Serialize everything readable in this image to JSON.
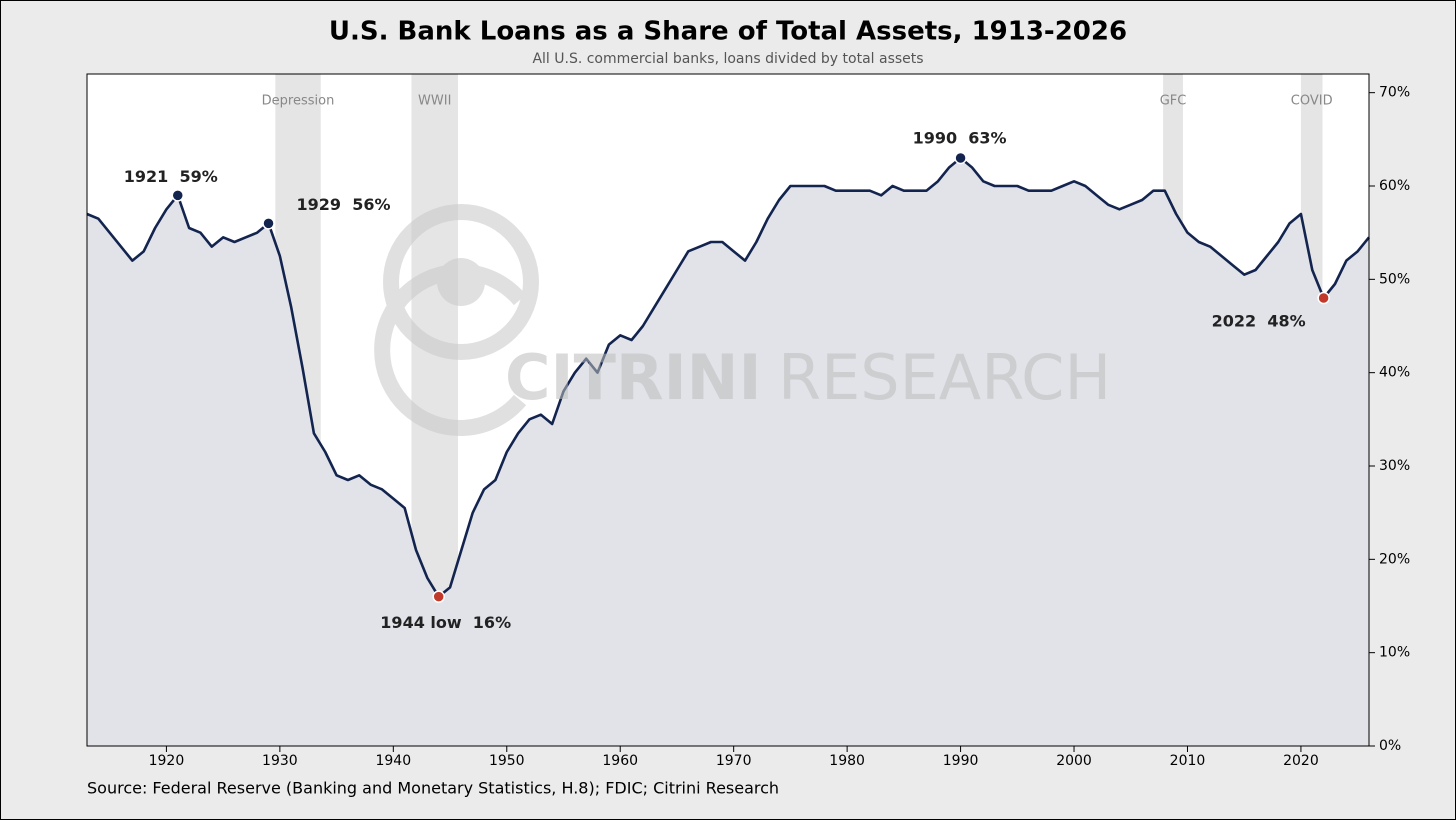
{
  "chart_data": {
    "type": "line",
    "title": "U.S. Bank Loans as a Share of Total Assets, 1913-2026",
    "subtitle": "All U.S. commercial banks, loans divided by total assets",
    "source": "Source: Federal Reserve (Banking and Monetary Statistics, H.8); FDIC; Citrini Research",
    "watermark": [
      "CITRINI",
      "RESEARCH"
    ],
    "x": [
      1913,
      1914,
      1915,
      1916,
      1917,
      1918,
      1919,
      1920,
      1921,
      1922,
      1923,
      1924,
      1925,
      1926,
      1927,
      1928,
      1929,
      1930,
      1931,
      1932,
      1933,
      1934,
      1935,
      1936,
      1937,
      1938,
      1939,
      1940,
      1941,
      1942,
      1943,
      1944,
      1945,
      1946,
      1947,
      1948,
      1949,
      1950,
      1951,
      1952,
      1953,
      1954,
      1955,
      1956,
      1957,
      1958,
      1959,
      1960,
      1961,
      1962,
      1963,
      1964,
      1965,
      1966,
      1967,
      1968,
      1969,
      1970,
      1971,
      1972,
      1973,
      1974,
      1975,
      1976,
      1977,
      1978,
      1979,
      1980,
      1981,
      1982,
      1983,
      1984,
      1985,
      1986,
      1987,
      1988,
      1989,
      1990,
      1991,
      1992,
      1993,
      1994,
      1995,
      1996,
      1997,
      1998,
      1999,
      2000,
      2001,
      2002,
      2003,
      2004,
      2005,
      2006,
      2007,
      2008,
      2009,
      2010,
      2011,
      2012,
      2013,
      2014,
      2015,
      2016,
      2017,
      2018,
      2019,
      2020,
      2021,
      2022,
      2023,
      2024,
      2025,
      2026
    ],
    "series": [
      {
        "color": "#13244f",
        "area_color": "#e1e3e9",
        "values": [
          57,
          56.5,
          55,
          53.5,
          52,
          53,
          55.5,
          57.5,
          59,
          55.5,
          55,
          53.5,
          54.5,
          54,
          54.5,
          55,
          56,
          52.5,
          47,
          40.5,
          33.5,
          31.5,
          29,
          28.5,
          29,
          28,
          27.5,
          26.5,
          25.5,
          21,
          18,
          16,
          17,
          21,
          25,
          27.5,
          28.5,
          31.5,
          33.5,
          35,
          35.5,
          34.5,
          38,
          40,
          41.5,
          40,
          43,
          44,
          43.5,
          45,
          47,
          49,
          51,
          53,
          53.5,
          54,
          54,
          53,
          52,
          54,
          56.5,
          58.5,
          60,
          60,
          60,
          60,
          59.5,
          59.5,
          59.5,
          59.5,
          59,
          60,
          59.5,
          59.5,
          59.5,
          60.5,
          62,
          63,
          62,
          60.5,
          60,
          60,
          60,
          59.5,
          59.5,
          59.5,
          60,
          60.5,
          60,
          59,
          58,
          57.5,
          58,
          58.5,
          59.5,
          59.5,
          57,
          55,
          54,
          53.5,
          52.5,
          51.5,
          50.5,
          51,
          52.5,
          54,
          56,
          57,
          51,
          48,
          49.5,
          52,
          53,
          54.5
        ]
      }
    ],
    "shaded_periods": [
      {
        "label": "Depression",
        "start": 1929.6,
        "end": 1933.6
      },
      {
        "label": "WWII",
        "start": 1941.6,
        "end": 1945.7
      },
      {
        "label": "GFC",
        "start": 2007.85,
        "end": 2009.6
      },
      {
        "label": "COVID",
        "start": 2020,
        "end": 2021.9
      }
    ],
    "annotations": [
      {
        "text": "1921  59%",
        "x": 1921,
        "y": 59,
        "color": "#13244f"
      },
      {
        "text": "1929  56%",
        "x": 1929,
        "y": 56,
        "color": "#13244f"
      },
      {
        "text": "1944 low  16%",
        "x": 1944,
        "y": 16,
        "color": "#c0392b"
      },
      {
        "text": "1990  63%",
        "x": 1990,
        "y": 63,
        "color": "#13244f"
      },
      {
        "text": "2022  48%",
        "x": 2022,
        "y": 48,
        "color": "#c0392b"
      }
    ],
    "xlim": [
      1913,
      2026
    ],
    "ylim": [
      0,
      72
    ],
    "xticks": [
      1920,
      1930,
      1940,
      1950,
      1960,
      1970,
      1980,
      1990,
      2000,
      2010,
      2020
    ],
    "yticks": [
      {
        "value": 0,
        "label": "0%"
      },
      {
        "value": 10,
        "label": "10%"
      },
      {
        "value": 20,
        "label": "20%"
      },
      {
        "value": 30,
        "label": "30%"
      },
      {
        "value": 40,
        "label": "40%"
      },
      {
        "value": 50,
        "label": "50%"
      },
      {
        "value": 60,
        "label": "60%"
      },
      {
        "value": 70,
        "label": "70%"
      }
    ],
    "y_axis_side": "right",
    "grid": false
  }
}
